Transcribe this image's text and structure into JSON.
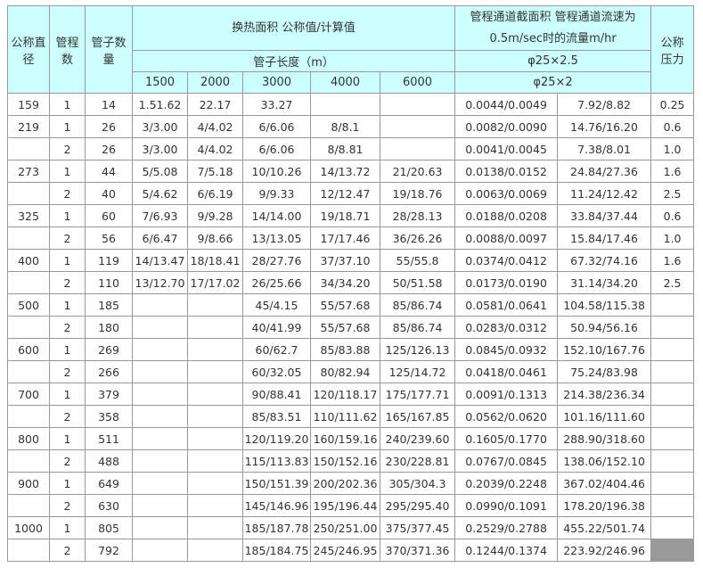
{
  "header": {
    "diameter": [
      "公称直",
      "径"
    ],
    "passes": [
      "管程",
      "数"
    ],
    "tube_count": [
      "管子数",
      "量"
    ],
    "area": "换热面积 公称值/计算值",
    "flow": [
      "管程通道截面积 管程通道流速为",
      "0.5m/sec时的流量m/hr"
    ],
    "pressure": [
      "公称",
      "压力"
    ],
    "tube_length": "管子长度（m）",
    "lengths": [
      "1500",
      "2000",
      "3000",
      "4000",
      "6000"
    ],
    "spec1": "φ25×2.5",
    "spec2": "φ25×2"
  },
  "rows": [
    [
      "159",
      "1",
      "14",
      "1.51.62",
      "22.17",
      "33.27",
      "",
      "",
      "0.0044/0.0049",
      "7.92/8.82",
      "0.25"
    ],
    [
      "219",
      "1",
      "26",
      "3/3.00",
      "4/4.02",
      "6/6.06",
      "8/8.1",
      "",
      "0.0082/0.0090",
      "14.76/16.20",
      "0.6"
    ],
    [
      "",
      "2",
      "26",
      "3/3.00",
      "4/4.02",
      "6/6.06",
      "8/8.81",
      "",
      "0.0041/0.0045",
      "7.38/8.01",
      "1.0"
    ],
    [
      "273",
      "1",
      "44",
      "5/5.08",
      "7/5.18",
      "10/10.26",
      "14/13.72",
      "21/20.63",
      "0.0138/0.0152",
      "24.84/27.36",
      "1.6"
    ],
    [
      "",
      "2",
      "40",
      "5/4.62",
      "6/6.19",
      "9/9.33",
      "12/12.47",
      "19/18.76",
      "0.0063/0.0069",
      "11.24/12.42",
      "2.5"
    ],
    [
      "325",
      "1",
      "60",
      "7/6.93",
      "9/9.28",
      "14/14.00",
      "19/18.71",
      "28/28.13",
      "0.0188/0.0208",
      "33.84/37.44",
      "0.6"
    ],
    [
      "",
      "2",
      "56",
      "6/6.47",
      "9/8.66",
      "13/13.05",
      "17/17.46",
      "36/26.26",
      "0.0088/0.0097",
      "15.84/17.46",
      "1.0"
    ],
    [
      "400",
      "1",
      "119",
      "14/13.47",
      "18/18.41",
      "28/27.76",
      "37/37.10",
      "55/55.8",
      "0.0374/0.0412",
      "67.32/74.16",
      "1.6"
    ],
    [
      "",
      "2",
      "110",
      "13/12.70",
      "17/17.02",
      "26/25.66",
      "34/34.20",
      "50/51.58",
      "0.0173/0.0190",
      "31.14/34.20",
      "2.5"
    ],
    [
      "500",
      "1",
      "185",
      "",
      "",
      "45/4.15",
      "55/57.68",
      "85/86.74",
      "0.0581/0.0641",
      "104.58/115.38",
      ""
    ],
    [
      "",
      "2",
      "180",
      "",
      "",
      "40/41.99",
      "55/57.68",
      "85/86.74",
      "0.0283/0.0312",
      "50.94/56.16",
      ""
    ],
    [
      "600",
      "1",
      "269",
      "",
      "",
      "60/62.7",
      "85/83.88",
      "125/126.13",
      "0.0845/0.0932",
      "152.10/167.76",
      ""
    ],
    [
      "",
      "2",
      "266",
      "",
      "",
      "60/32.05",
      "80/82.94",
      "125/14.72",
      "0.0418/0.0461",
      "75.24/83.98",
      ""
    ],
    [
      "700",
      "1",
      "379",
      "",
      "",
      "90/88.41",
      "120/118.17",
      "175/177.71",
      "0.0091/0.1313",
      "214.38/236.34",
      ""
    ],
    [
      "",
      "2",
      "358",
      "",
      "",
      "85/83.51",
      "110/111.62",
      "165/167.85",
      "0.0562/0.0620",
      "101.16/111.60",
      ""
    ],
    [
      "800",
      "1",
      "511",
      "",
      "",
      "120/119.20",
      "160/159.16",
      "240/239.60",
      "0.1605/0.1770",
      "288.90/318.60",
      ""
    ],
    [
      "",
      "2",
      "488",
      "",
      "",
      "115/113.83",
      "150/152.16",
      "230/228.81",
      "0.0767/0.0845",
      "138.06/152.10",
      ""
    ],
    [
      "900",
      "1",
      "649",
      "",
      "",
      "150/151.39",
      "200/202.36",
      "305/304.3",
      "0.2039/0.2248",
      "367.02/404.46",
      ""
    ],
    [
      "",
      "2",
      "630",
      "",
      "",
      "145/146.96",
      "195/196.44",
      "295/295.40",
      "0.0990/0.1091",
      "178.20/196.38",
      ""
    ],
    [
      "1000",
      "1",
      "805",
      "",
      "",
      "185/187.78",
      "250/251.00",
      "375/377.45",
      "0.2529/0.2788",
      "455.22/501.74",
      ""
    ],
    [
      "",
      "2",
      "792",
      "",
      "",
      "185/184.75",
      "245/246.95",
      "370/371.36",
      "0.1244/0.1374",
      "223.92/246.96",
      ""
    ]
  ],
  "colors": {
    "header_bg": "#ccffff",
    "border": "#999999",
    "filled_cell": "#999999"
  }
}
